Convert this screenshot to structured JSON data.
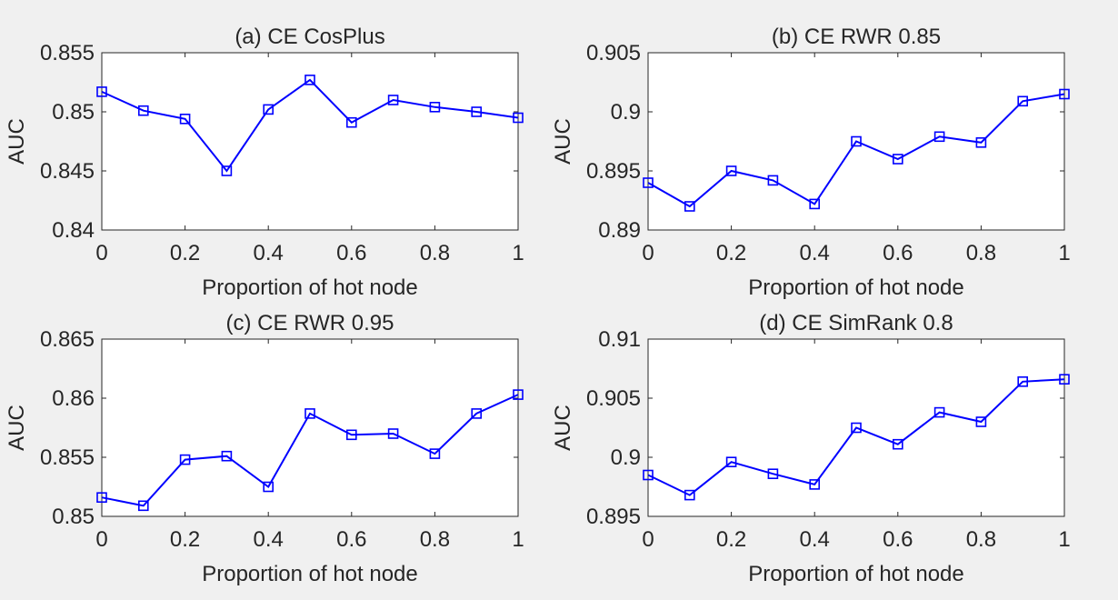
{
  "page": {
    "background": "#f0f0f0"
  },
  "style": {
    "line_color": "#0000ff",
    "axes_color": "#262626",
    "plot_bg": "#ffffff"
  },
  "chart_data": [
    {
      "type": "line",
      "title": "(a) CE CosPlus",
      "xlabel": "Proportion of hot node",
      "ylabel": "AUC",
      "xlim": [
        0,
        1
      ],
      "ylim": [
        0.84,
        0.855
      ],
      "x_ticks": [
        "0",
        "0.2",
        "0.4",
        "0.6",
        "0.8",
        "1"
      ],
      "y_ticks": [
        "0.84",
        "0.845",
        "0.85",
        "0.855"
      ],
      "grid": false,
      "marker": "square",
      "x": [
        0,
        0.1,
        0.2,
        0.3,
        0.4,
        0.5,
        0.6,
        0.7,
        0.8,
        0.9,
        1.0
      ],
      "y": [
        0.8517,
        0.8501,
        0.8494,
        0.845,
        0.8502,
        0.8527,
        0.8491,
        0.851,
        0.8504,
        0.85,
        0.8495
      ]
    },
    {
      "type": "line",
      "title": "(b) CE RWR 0.85",
      "xlabel": "Proportion of hot node",
      "ylabel": "AUC",
      "xlim": [
        0,
        1
      ],
      "ylim": [
        0.89,
        0.905
      ],
      "x_ticks": [
        "0",
        "0.2",
        "0.4",
        "0.6",
        "0.8",
        "1"
      ],
      "y_ticks": [
        "0.89",
        "0.895",
        "0.9",
        "0.905"
      ],
      "grid": false,
      "marker": "square",
      "x": [
        0,
        0.1,
        0.2,
        0.3,
        0.4,
        0.5,
        0.6,
        0.7,
        0.8,
        0.9,
        1.0
      ],
      "y": [
        0.894,
        0.892,
        0.895,
        0.8942,
        0.8922,
        0.8975,
        0.896,
        0.8979,
        0.8974,
        0.9009,
        0.9015
      ]
    },
    {
      "type": "line",
      "title": "(c) CE RWR 0.95",
      "xlabel": "Proportion of hot node",
      "ylabel": "AUC",
      "xlim": [
        0,
        1
      ],
      "ylim": [
        0.85,
        0.865
      ],
      "x_ticks": [
        "0",
        "0.2",
        "0.4",
        "0.6",
        "0.8",
        "1"
      ],
      "y_ticks": [
        "0.85",
        "0.855",
        "0.86",
        "0.865"
      ],
      "grid": false,
      "marker": "square",
      "x": [
        0,
        0.1,
        0.2,
        0.3,
        0.4,
        0.5,
        0.6,
        0.7,
        0.8,
        0.9,
        1.0
      ],
      "y": [
        0.8516,
        0.8509,
        0.8548,
        0.8551,
        0.8525,
        0.8587,
        0.8569,
        0.857,
        0.8553,
        0.8587,
        0.8603
      ]
    },
    {
      "type": "line",
      "title": "(d) CE SimRank 0.8",
      "xlabel": "Proportion of hot node",
      "ylabel": "AUC",
      "xlim": [
        0,
        1
      ],
      "ylim": [
        0.895,
        0.91
      ],
      "x_ticks": [
        "0",
        "0.2",
        "0.4",
        "0.6",
        "0.8",
        "1"
      ],
      "y_ticks": [
        "0.895",
        "0.9",
        "0.905",
        "0.91"
      ],
      "grid": false,
      "marker": "square",
      "x": [
        0,
        0.1,
        0.2,
        0.3,
        0.4,
        0.5,
        0.6,
        0.7,
        0.8,
        0.9,
        1.0
      ],
      "y": [
        0.8985,
        0.8968,
        0.8996,
        0.8986,
        0.8977,
        0.9025,
        0.9011,
        0.9038,
        0.903,
        0.9064,
        0.9066
      ]
    }
  ]
}
